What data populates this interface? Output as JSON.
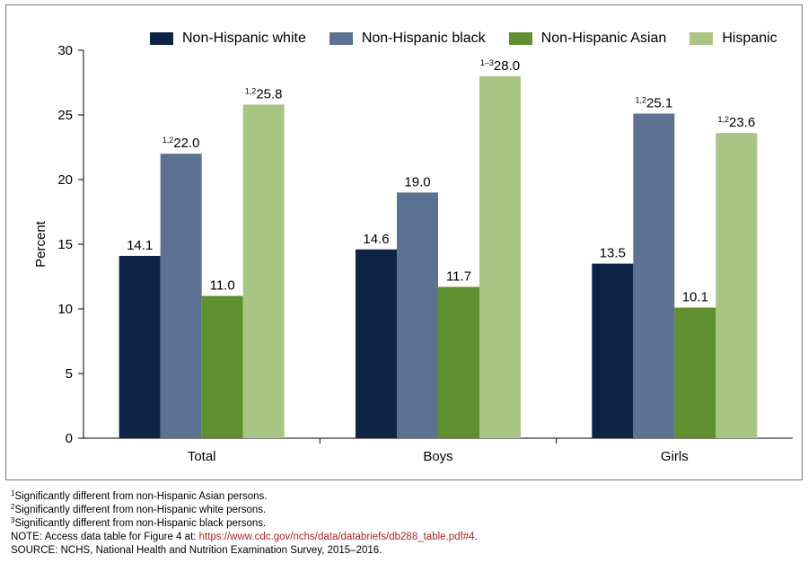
{
  "chart_data": {
    "type": "bar",
    "ylabel": "Percent",
    "ylim": [
      0,
      30
    ],
    "yticks": [
      0,
      5,
      10,
      15,
      20,
      25,
      30
    ],
    "categories": [
      "Total",
      "Boys",
      "Girls"
    ],
    "legend_position": "top",
    "grid": false,
    "series": [
      {
        "name": "Non-Hispanic white",
        "color": "#0d2447",
        "values": [
          14.1,
          14.6,
          13.5
        ],
        "sups": [
          "",
          "",
          ""
        ]
      },
      {
        "name": "Non-Hispanic black",
        "color": "#5d7193",
        "values": [
          22.0,
          19.0,
          25.1
        ],
        "sups": [
          "1,2",
          "",
          "1,2"
        ]
      },
      {
        "name": "Non-Hispanic Asian",
        "color": "#5f8f2f",
        "values": [
          11.0,
          11.7,
          10.1
        ],
        "sups": [
          "",
          "",
          ""
        ]
      },
      {
        "name": "Hispanic",
        "color": "#a9c584",
        "values": [
          25.8,
          28.0,
          23.6
        ],
        "sups": [
          "1,2",
          "1–3",
          "1,2"
        ]
      }
    ]
  },
  "notes": {
    "footnote1": {
      "sup": "1",
      "text": "Significantly different from non-Hispanic Asian persons."
    },
    "footnote2": {
      "sup": "2",
      "text": "Significantly different from non-Hispanic white persons."
    },
    "footnote3": {
      "sup": "3",
      "text": "Significantly different from non-Hispanic black persons."
    },
    "note_prefix": "NOTE: Access data table for Figure 4 at: ",
    "note_link": "https://www.cdc.gov/nchs/data/databriefs/db288_table.pdf#4",
    "note_suffix": ".",
    "source": "SOURCE: NCHS, National Health and Nutrition Examination Survey, 2015–2016."
  }
}
